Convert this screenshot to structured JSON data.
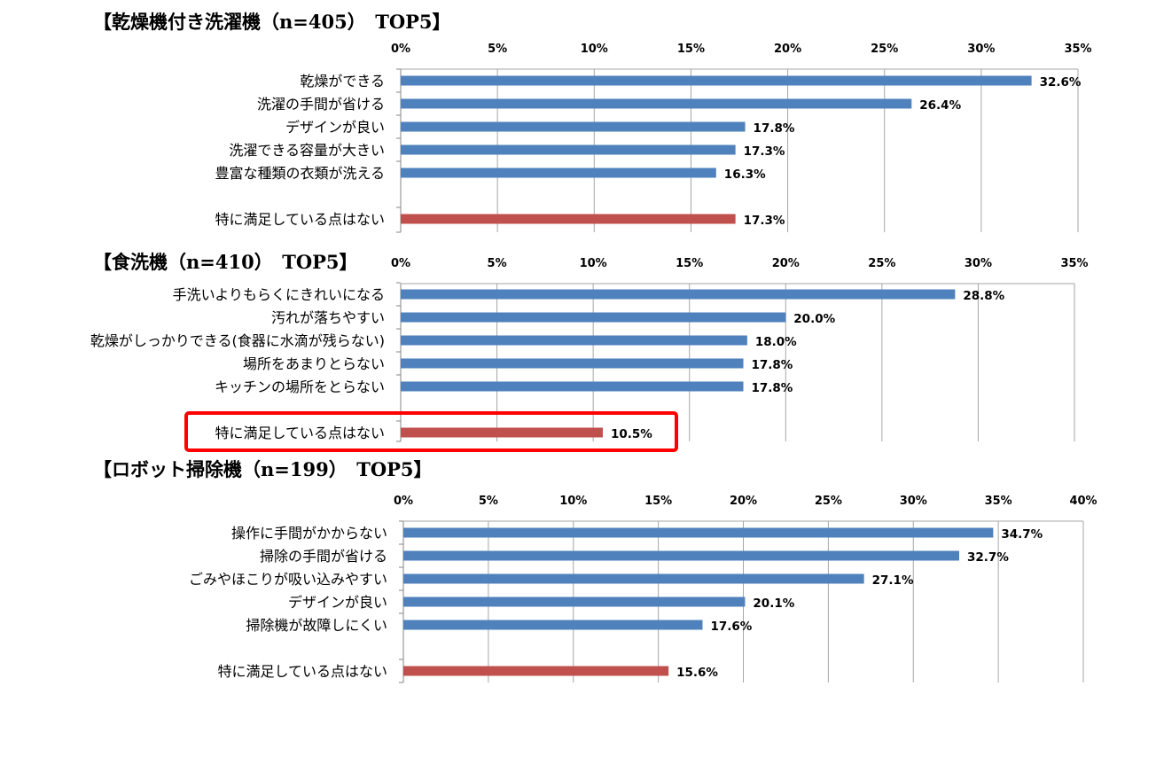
{
  "colors": {
    "bar": "#4f81bd",
    "bar_highlight": "#c0504d",
    "grid": "#a6a6a6",
    "callout": "#ff0000"
  },
  "chart_data": [
    {
      "type": "bar",
      "orientation": "horizontal",
      "title": "【乾燥機付き洗濯機（n=405）　TOP5】",
      "tick_labels": [
        "0%",
        "5%",
        "10%",
        "15%",
        "20%",
        "25%",
        "30%",
        "35%"
      ],
      "xlim": [
        0,
        35
      ],
      "grid": true,
      "categories": [
        "乾燥ができる",
        "洗濯の手間が省ける",
        "デザインが良い",
        "洗濯できる容量が大きい",
        "豊富な種類の衣類が洗える",
        "特に満足している点はない"
      ],
      "values": [
        32.6,
        26.4,
        17.8,
        17.3,
        16.3,
        17.3
      ],
      "value_labels": [
        "32.6%",
        "26.4%",
        "17.8%",
        "17.3%",
        "16.3%",
        "17.3%"
      ],
      "highlight_last": true,
      "callout": false
    },
    {
      "type": "bar",
      "orientation": "horizontal",
      "title": "【食洗機（n=410）　TOP5】",
      "tick_labels": [
        "0%",
        "5%",
        "10%",
        "15%",
        "20%",
        "25%",
        "30%",
        "35%"
      ],
      "xlim": [
        0,
        35
      ],
      "grid": true,
      "categories": [
        "手洗いよりもらくにきれいになる",
        "汚れが落ちやすい",
        "乾燥がしっかりできる(食器に水滴が残らない)",
        "場所をあまりとらない",
        "キッチンの場所をとらない",
        "特に満足している点はない"
      ],
      "values": [
        28.8,
        20.0,
        18.0,
        17.8,
        17.8,
        10.5
      ],
      "value_labels": [
        "28.8%",
        "20.0%",
        "18.0%",
        "17.8%",
        "17.8%",
        "10.5%"
      ],
      "highlight_last": true,
      "callout": true
    },
    {
      "type": "bar",
      "orientation": "horizontal",
      "title": "【ロボット掃除機（n=199）　TOP5】",
      "tick_labels": [
        "0%",
        "5%",
        "10%",
        "15%",
        "20%",
        "25%",
        "30%",
        "35%",
        "40%"
      ],
      "xlim": [
        0,
        40
      ],
      "grid": true,
      "categories": [
        "操作に手間がかからない",
        "掃除の手間が省ける",
        "ごみやほこりが吸い込みやすい",
        "デザインが良い",
        "掃除機が故障しにくい",
        "特に満足している点はない"
      ],
      "values": [
        34.7,
        32.7,
        27.1,
        20.1,
        17.6,
        15.6
      ],
      "value_labels": [
        "34.7%",
        "32.7%",
        "27.1%",
        "20.1%",
        "17.6%",
        "15.6%"
      ],
      "highlight_last": true,
      "callout": false
    }
  ]
}
